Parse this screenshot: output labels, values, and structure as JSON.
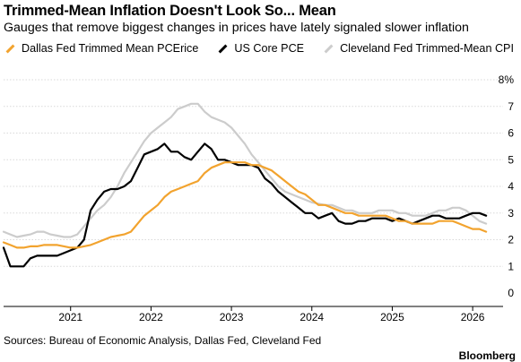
{
  "title": "Trimmed-Mean Inflation Doesn't Look So... Mean",
  "subtitle": "Gauges that remove biggest changes in prices have lately signaled slower inflation",
  "source": "Sources: Bureau of Economic Analysis, Dallas Fed, Cleveland Fed",
  "brand": "Bloomberg",
  "chart_data": {
    "type": "line",
    "title": "Trimmed-Mean Inflation Doesn't Look So... Mean",
    "subtitle": "Gauges that remove biggest changes in prices have lately signaled slower inflation",
    "x_ticks": [
      "2021",
      "2022",
      "2023",
      "2024",
      "2025",
      "2026"
    ],
    "y_ticks": [
      "8%",
      "7",
      "6",
      "5",
      "4",
      "3",
      "2",
      "1",
      "0"
    ],
    "ylim": [
      0,
      8
    ],
    "xlim": [
      "2020-03",
      "2026-05"
    ],
    "y_axis_side": "right",
    "grid": "horizontal",
    "legend_position": "top",
    "series": [
      {
        "name": "Cleveland Fed Trimmed-Mean CPI",
        "color": "#cccccc",
        "x": [
          "2020-03",
          "2020-04",
          "2020-05",
          "2020-06",
          "2020-07",
          "2020-08",
          "2020-09",
          "2020-10",
          "2020-11",
          "2020-12",
          "2021-01",
          "2021-02",
          "2021-03",
          "2021-04",
          "2021-05",
          "2021-06",
          "2021-07",
          "2021-08",
          "2021-09",
          "2021-10",
          "2021-11",
          "2021-12",
          "2022-01",
          "2022-02",
          "2022-03",
          "2022-04",
          "2022-05",
          "2022-06",
          "2022-07",
          "2022-08",
          "2022-09",
          "2022-10",
          "2022-11",
          "2022-12",
          "2023-01",
          "2023-02",
          "2023-03",
          "2023-04",
          "2023-05",
          "2023-06",
          "2023-07",
          "2023-08",
          "2023-09",
          "2023-10",
          "2023-11",
          "2023-12",
          "2024-01",
          "2024-02",
          "2024-03",
          "2024-04",
          "2024-05",
          "2024-06",
          "2024-07",
          "2024-08",
          "2024-09",
          "2024-10",
          "2024-11",
          "2024-12",
          "2025-01",
          "2025-02",
          "2025-03",
          "2025-04",
          "2025-05",
          "2025-06",
          "2025-07",
          "2025-08",
          "2025-09",
          "2025-10",
          "2025-11",
          "2025-12",
          "2026-01",
          "2026-02",
          "2026-03"
        ],
        "values": [
          2.3,
          2.2,
          2.1,
          2.15,
          2.2,
          2.3,
          2.3,
          2.2,
          2.15,
          2.1,
          2.1,
          2.2,
          2.5,
          2.8,
          3.1,
          3.3,
          3.6,
          4.0,
          4.5,
          4.9,
          5.3,
          5.7,
          6.0,
          6.2,
          6.4,
          6.6,
          6.9,
          7.0,
          7.1,
          7.1,
          6.8,
          6.6,
          6.5,
          6.4,
          6.2,
          5.9,
          5.6,
          5.2,
          4.9,
          4.6,
          4.3,
          4.0,
          3.8,
          3.7,
          3.6,
          3.5,
          3.4,
          3.35,
          3.3,
          3.3,
          3.2,
          3.1,
          3.1,
          3.0,
          3.0,
          3.0,
          3.1,
          3.1,
          3.1,
          3.0,
          3.0,
          2.9,
          2.9,
          2.9,
          3.0,
          3.1,
          3.1,
          3.2,
          3.2,
          3.1,
          2.9,
          2.7,
          2.6
        ]
      },
      {
        "name": "US Core PCE",
        "color": "#000000",
        "x": [
          "2020-03",
          "2020-04",
          "2020-05",
          "2020-06",
          "2020-07",
          "2020-08",
          "2020-09",
          "2020-10",
          "2020-11",
          "2020-12",
          "2021-01",
          "2021-02",
          "2021-03",
          "2021-04",
          "2021-05",
          "2021-06",
          "2021-07",
          "2021-08",
          "2021-09",
          "2021-10",
          "2021-11",
          "2021-12",
          "2022-01",
          "2022-02",
          "2022-03",
          "2022-04",
          "2022-05",
          "2022-06",
          "2022-07",
          "2022-08",
          "2022-09",
          "2022-10",
          "2022-11",
          "2022-12",
          "2023-01",
          "2023-02",
          "2023-03",
          "2023-04",
          "2023-05",
          "2023-06",
          "2023-07",
          "2023-08",
          "2023-09",
          "2023-10",
          "2023-11",
          "2023-12",
          "2024-01",
          "2024-02",
          "2024-03",
          "2024-04",
          "2024-05",
          "2024-06",
          "2024-07",
          "2024-08",
          "2024-09",
          "2024-10",
          "2024-11",
          "2024-12",
          "2025-01",
          "2025-02",
          "2025-03",
          "2025-04",
          "2025-05",
          "2025-06",
          "2025-07",
          "2025-08",
          "2025-09",
          "2025-10",
          "2025-11",
          "2025-12",
          "2026-01",
          "2026-02",
          "2026-03"
        ],
        "values": [
          1.7,
          1.0,
          1.0,
          1.0,
          1.3,
          1.4,
          1.4,
          1.4,
          1.4,
          1.5,
          1.6,
          1.7,
          2.0,
          3.1,
          3.5,
          3.8,
          3.9,
          3.9,
          4.0,
          4.2,
          4.7,
          5.2,
          5.3,
          5.4,
          5.6,
          5.3,
          5.3,
          5.1,
          5.0,
          5.3,
          5.6,
          5.4,
          5.0,
          5.0,
          4.9,
          4.8,
          4.8,
          4.8,
          4.7,
          4.3,
          4.1,
          3.8,
          3.6,
          3.4,
          3.2,
          3.0,
          3.0,
          2.8,
          2.9,
          3.0,
          2.7,
          2.6,
          2.6,
          2.7,
          2.7,
          2.8,
          2.8,
          2.8,
          2.7,
          2.8,
          2.7,
          2.6,
          2.7,
          2.8,
          2.9,
          2.9,
          2.8,
          2.8,
          2.8,
          2.9,
          3.0,
          3.0,
          2.9
        ]
      },
      {
        "name": "Dallas Fed Trimmed Mean PCErice",
        "color": "#f2a32e",
        "x": [
          "2020-03",
          "2020-04",
          "2020-05",
          "2020-06",
          "2020-07",
          "2020-08",
          "2020-09",
          "2020-10",
          "2020-11",
          "2020-12",
          "2021-01",
          "2021-02",
          "2021-03",
          "2021-04",
          "2021-05",
          "2021-06",
          "2021-07",
          "2021-08",
          "2021-09",
          "2021-10",
          "2021-11",
          "2021-12",
          "2022-01",
          "2022-02",
          "2022-03",
          "2022-04",
          "2022-05",
          "2022-06",
          "2022-07",
          "2022-08",
          "2022-09",
          "2022-10",
          "2022-11",
          "2022-12",
          "2023-01",
          "2023-02",
          "2023-03",
          "2023-04",
          "2023-05",
          "2023-06",
          "2023-07",
          "2023-08",
          "2023-09",
          "2023-10",
          "2023-11",
          "2023-12",
          "2024-01",
          "2024-02",
          "2024-03",
          "2024-04",
          "2024-05",
          "2024-06",
          "2024-07",
          "2024-08",
          "2024-09",
          "2024-10",
          "2024-11",
          "2024-12",
          "2025-01",
          "2025-02",
          "2025-03",
          "2025-04",
          "2025-05",
          "2025-06",
          "2025-07",
          "2025-08",
          "2025-09",
          "2025-10",
          "2025-11",
          "2025-12",
          "2026-01",
          "2026-02",
          "2026-03"
        ],
        "values": [
          1.9,
          1.8,
          1.7,
          1.7,
          1.75,
          1.75,
          1.8,
          1.8,
          1.8,
          1.75,
          1.7,
          1.7,
          1.75,
          1.8,
          1.9,
          2.0,
          2.1,
          2.15,
          2.2,
          2.3,
          2.6,
          2.9,
          3.1,
          3.3,
          3.6,
          3.8,
          3.9,
          4.0,
          4.1,
          4.2,
          4.5,
          4.7,
          4.8,
          4.9,
          4.9,
          4.9,
          4.9,
          4.8,
          4.8,
          4.7,
          4.6,
          4.4,
          4.2,
          4.0,
          3.8,
          3.7,
          3.5,
          3.3,
          3.3,
          3.2,
          3.1,
          3.0,
          3.0,
          2.9,
          2.9,
          2.9,
          2.9,
          2.9,
          2.8,
          2.7,
          2.7,
          2.6,
          2.6,
          2.6,
          2.6,
          2.7,
          2.7,
          2.7,
          2.6,
          2.5,
          2.4,
          2.4,
          2.3
        ]
      }
    ]
  },
  "legend": [
    {
      "label": "Dallas Fed Trimmed Mean PCErice",
      "color": "#f2a32e"
    },
    {
      "label": "US Core PCE",
      "color": "#000000"
    },
    {
      "label": "Cleveland Fed Trimmed-Mean CPI",
      "color": "#cccccc"
    }
  ]
}
